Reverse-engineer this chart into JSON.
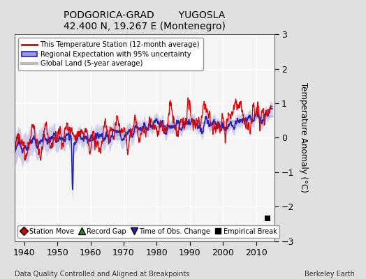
{
  "title": "PODGORICA-GRAD        YUGOSLA",
  "subtitle": "42.400 N, 19.267 E (Montenegro)",
  "xlabel_bottom": "Data Quality Controlled and Aligned at Breakpoints",
  "xlabel_right": "Berkeley Earth",
  "ylabel": "Temperature Anomaly (°C)",
  "xlim": [
    1937,
    2015.5
  ],
  "ylim": [
    -3,
    3
  ],
  "yticks": [
    -3,
    -2,
    -1,
    0,
    1,
    2,
    3
  ],
  "xticks": [
    1940,
    1950,
    1960,
    1970,
    1980,
    1990,
    2000,
    2010
  ],
  "bg_color": "#e0e0e0",
  "plot_bg_color": "#f5f5f5",
  "grid_color": "#ffffff",
  "station_color": "#dd0000",
  "regional_color": "#2222bb",
  "regional_fill_color": "#9999dd",
  "global_color": "#bbbbbb",
  "empirical_break_year": 2013.5,
  "empirical_break_val": -2.35,
  "seed": 123
}
